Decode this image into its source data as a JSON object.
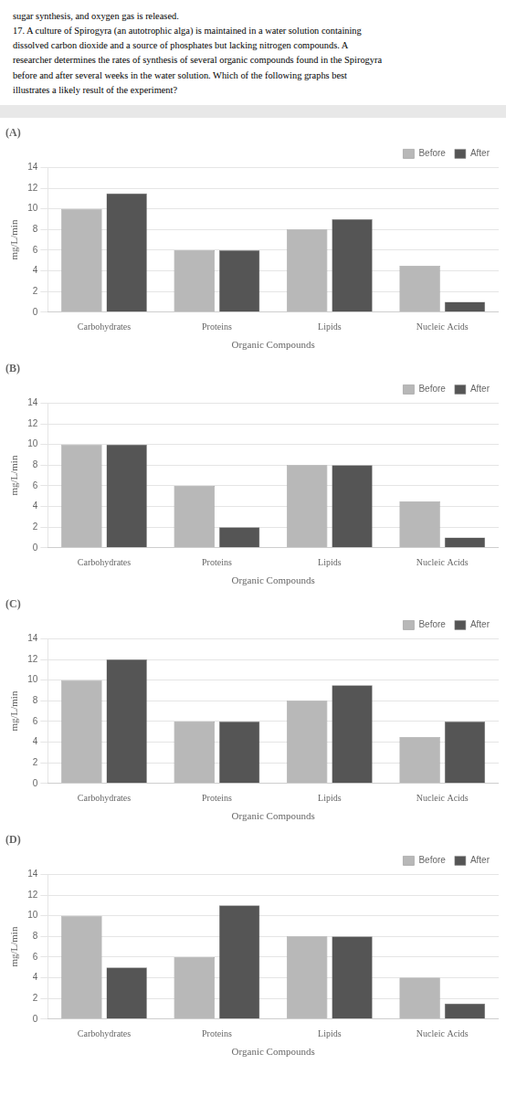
{
  "chart_data": [
    {
      "type": "bar",
      "title": "(A)",
      "annotations": [
        "sugar synthesis, and oxygen gas is released.",
        "17. A culture of Spirogyra (an autotrophic alga) is maintained in a water solution containing",
        "dissolved carbon dioxide and a source of phosphates but lacking nitrogen compounds. A",
        "researcher determines the rates of synthesis of several organic compounds found in the Spirogyra",
        "before and after several weeks in the water solution. Which of the following graphs best",
        "illustrates a likely result of the experiment?"
      ],
      "categories": [
        "Carbohydrates",
        "Proteins",
        "Lipids",
        "Nucleic Acids"
      ],
      "series": [
        {
          "name": "Before",
          "color": "#b8b8b8",
          "values": [
            10,
            6,
            8,
            4.5
          ]
        },
        {
          "name": "After",
          "color": "#555555",
          "values": [
            11.5,
            6,
            9,
            1
          ]
        }
      ],
      "xlabel": "Organic Compounds",
      "ylabel": "mg/L/min",
      "ylim": [
        0,
        14
      ],
      "yticks": [
        0,
        2,
        4,
        6,
        8,
        10,
        12,
        14
      ],
      "grid": true,
      "legend": "upper right"
    },
    {
      "type": "bar",
      "title": "(B)",
      "categories": [
        "Carbohydrates",
        "Proteins",
        "Lipids",
        "Nucleic Acids"
      ],
      "series": [
        {
          "name": "Before",
          "color": "#b8b8b8",
          "values": [
            10,
            6,
            8,
            4.5
          ]
        },
        {
          "name": "After",
          "color": "#555555",
          "values": [
            10,
            2,
            8,
            1
          ]
        }
      ],
      "xlabel": "Organic Compounds",
      "ylabel": "mg/L/min",
      "ylim": [
        0,
        14
      ],
      "yticks": [
        0,
        2,
        4,
        6,
        8,
        10,
        12,
        14
      ],
      "grid": true,
      "legend": "upper right"
    },
    {
      "type": "bar",
      "title": "(C)",
      "categories": [
        "Carbohydrates",
        "Proteins",
        "Lipids",
        "Nucleic Acids"
      ],
      "series": [
        {
          "name": "Before",
          "color": "#b8b8b8",
          "values": [
            10,
            6,
            8,
            4.5
          ]
        },
        {
          "name": "After",
          "color": "#555555",
          "values": [
            12,
            6,
            9.5,
            6
          ]
        }
      ],
      "xlabel": "Organic Compounds",
      "ylabel": "mg/L/min",
      "ylim": [
        0,
        14
      ],
      "yticks": [
        0,
        2,
        4,
        6,
        8,
        10,
        12,
        14
      ],
      "grid": true,
      "legend": "upper right"
    },
    {
      "type": "bar",
      "title": "(D)",
      "categories": [
        "Carbohydrates",
        "Proteins",
        "Lipids",
        "Nucleic Acids"
      ],
      "series": [
        {
          "name": "Before",
          "color": "#b8b8b8",
          "values": [
            10,
            6,
            8,
            4
          ]
        },
        {
          "name": "After",
          "color": "#555555",
          "values": [
            5,
            11,
            8,
            1.5
          ]
        }
      ],
      "xlabel": "Organic Compounds",
      "ylabel": "mg/L/min",
      "ylim": [
        0,
        14
      ],
      "yticks": [
        0,
        2,
        4,
        6,
        8,
        10,
        12,
        14
      ],
      "grid": true,
      "legend": "upper right"
    }
  ]
}
